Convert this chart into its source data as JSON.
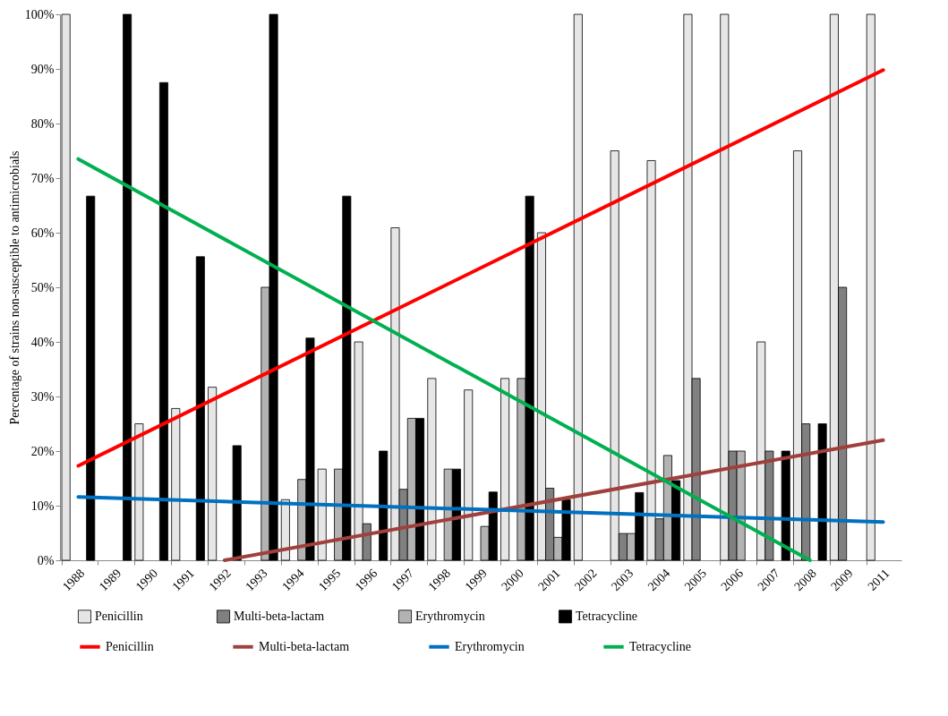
{
  "chart_data": {
    "type": "bar",
    "ylabel": "Percentage of strains non-susceptible to antimicrobials",
    "categories": [
      "1988",
      "1989",
      "1990",
      "1991",
      "1992",
      "1993",
      "1994",
      "1995",
      "1996",
      "1997",
      "1998",
      "1999",
      "2000",
      "2001",
      "2002",
      "2003",
      "2004",
      "2005",
      "2006",
      "2007",
      "2008",
      "2009",
      "2011"
    ],
    "series": [
      {
        "name": "Penicillin",
        "color": "#e6e6e6",
        "values": [
          100,
          null,
          25,
          27.8,
          31.7,
          null,
          11.1,
          16.7,
          40,
          60.9,
          33.3,
          31.2,
          33.3,
          60,
          100,
          75,
          73.2,
          100,
          100,
          40,
          75,
          100,
          100
        ]
      },
      {
        "name": "Multi-beta-lactam",
        "color": "#808080",
        "values": [
          null,
          null,
          null,
          null,
          null,
          null,
          null,
          null,
          6.7,
          13,
          null,
          null,
          null,
          13.2,
          null,
          4.9,
          7.6,
          33.3,
          20,
          20,
          25,
          50,
          null
        ]
      },
      {
        "name": "Erythromycin",
        "color": "#b3b3b3",
        "values": [
          null,
          null,
          null,
          null,
          null,
          50,
          14.8,
          16.7,
          null,
          26,
          16.7,
          6.2,
          33.3,
          4.2,
          null,
          4.9,
          19.2,
          null,
          20,
          null,
          null,
          null,
          null
        ]
      },
      {
        "name": "Tetracycline",
        "color": "#000000",
        "values": [
          66.7,
          100,
          87.5,
          55.6,
          21,
          100,
          40.7,
          66.7,
          20,
          26,
          16.7,
          12.5,
          66.7,
          11.1,
          null,
          12.4,
          14.6,
          null,
          null,
          20,
          25,
          null,
          null
        ]
      },
      {
        "name": "Penicillin",
        "type": "line",
        "color": "#ff0000",
        "values": [
          17.3,
          null,
          null,
          null,
          null,
          null,
          null,
          null,
          null,
          null,
          null,
          null,
          null,
          null,
          null,
          null,
          null,
          null,
          null,
          null,
          null,
          null,
          89.8
        ]
      },
      {
        "name": "Multi-beta-lactam",
        "type": "line",
        "color": "#a0403c",
        "values": [
          null,
          null,
          null,
          null,
          0,
          null,
          null,
          null,
          null,
          null,
          null,
          null,
          null,
          null,
          null,
          null,
          null,
          null,
          null,
          null,
          null,
          null,
          22
        ]
      },
      {
        "name": "Erythromycin",
        "type": "line",
        "color": "#0070c0",
        "values": [
          11.6,
          null,
          null,
          null,
          null,
          null,
          null,
          null,
          null,
          null,
          null,
          null,
          null,
          null,
          null,
          null,
          null,
          null,
          null,
          null,
          null,
          null,
          7
        ]
      },
      {
        "name": "Tetracycline",
        "type": "line",
        "color": "#00b050",
        "values": [
          73.5,
          null,
          null,
          null,
          null,
          null,
          null,
          null,
          null,
          null,
          null,
          null,
          null,
          null,
          null,
          null,
          null,
          null,
          null,
          null,
          0,
          null,
          null
        ]
      }
    ],
    "ylim": [
      0,
      100
    ],
    "yticks": [
      {
        "value": 0,
        "label": "0%"
      },
      {
        "value": 10,
        "label": "10%"
      },
      {
        "value": 20,
        "label": "20%"
      },
      {
        "value": 30,
        "label": "30%"
      },
      {
        "value": 40,
        "label": "40%"
      },
      {
        "value": 50,
        "label": "50%"
      },
      {
        "value": 60,
        "label": "60%"
      },
      {
        "value": 70,
        "label": "70%"
      },
      {
        "value": 80,
        "label": "80%"
      },
      {
        "value": 90,
        "label": "90%"
      },
      {
        "value": 100,
        "label": "100%"
      }
    ],
    "grid": false,
    "legend": "bottom"
  }
}
